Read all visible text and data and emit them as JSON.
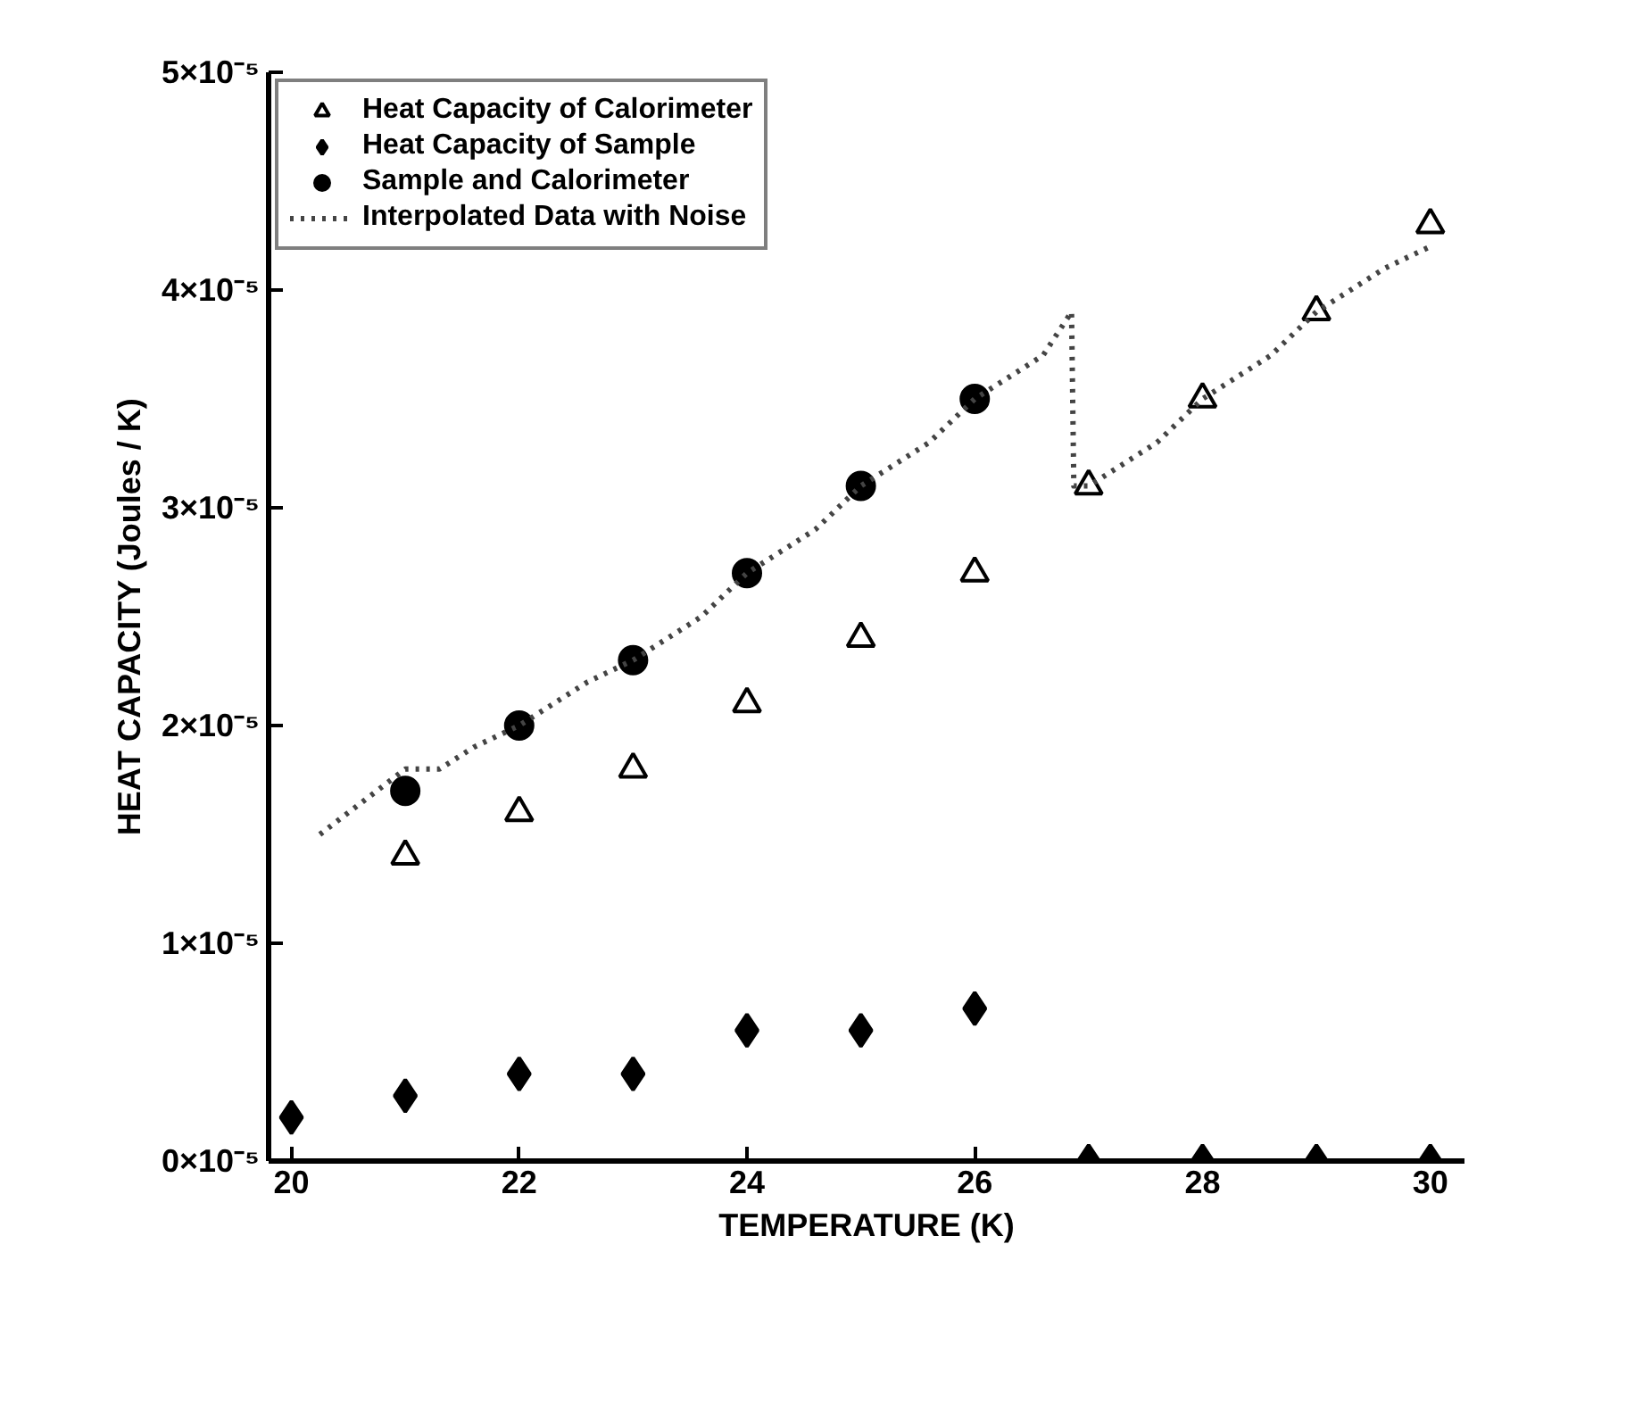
{
  "chart_data": {
    "type": "scatter",
    "xlabel": "TEMPERATURE (K)",
    "ylabel": "HEAT CAPACITY (Joules / K)",
    "xlim": [
      19.8,
      30.3
    ],
    "xticks": [
      20,
      22,
      24,
      26,
      28,
      30
    ],
    "ylim": [
      0,
      5e-05
    ],
    "yticks": [
      {
        "value": 0,
        "label": "0×10⁻⁵"
      },
      {
        "value": 1e-05,
        "label": "1×10⁻⁵"
      },
      {
        "value": 2e-05,
        "label": "2×10⁻⁵"
      },
      {
        "value": 3e-05,
        "label": "3×10⁻⁵"
      },
      {
        "value": 4e-05,
        "label": "4×10⁻⁵"
      },
      {
        "value": 5e-05,
        "label": "5×10⁻⁵"
      }
    ],
    "legend": "top left",
    "series": [
      {
        "name": "Heat Capacity of Calorimeter",
        "marker": "triangle",
        "color": "#000000",
        "x": [
          21,
          22,
          23,
          24,
          25,
          26,
          27,
          28,
          29,
          30
        ],
        "values": [
          1.4e-05,
          1.6e-05,
          1.8e-05,
          2.1e-05,
          2.4e-05,
          2.7e-05,
          3.1e-05,
          3.5e-05,
          3.9e-05,
          4.3e-05
        ]
      },
      {
        "name": "Heat Capacity of Sample",
        "marker": "diamond",
        "color": "#000000",
        "x": [
          20,
          21,
          22,
          23,
          24,
          25,
          26,
          27,
          28,
          29,
          30
        ],
        "values": [
          2e-06,
          3e-06,
          4e-06,
          4e-06,
          6e-06,
          6e-06,
          7e-06,
          0,
          0,
          0,
          0
        ]
      },
      {
        "name": "Sample and Calorimeter",
        "marker": "circle",
        "color": "#000000",
        "x": [
          21,
          22,
          23,
          24,
          25,
          26
        ],
        "values": [
          1.7e-05,
          2e-05,
          2.3e-05,
          2.7e-05,
          3.1e-05,
          3.5e-05
        ]
      },
      {
        "name": "Interpolated Data with Noise",
        "type": "line",
        "line_style": "dotted",
        "color": "#444444",
        "x": [
          20.25,
          20.5,
          20.75,
          21,
          21.3,
          21.6,
          22,
          22.3,
          22.6,
          23,
          23.3,
          23.6,
          24,
          24.3,
          24.6,
          25,
          25.3,
          25.6,
          26,
          26.3,
          26.6,
          26.85,
          26.87,
          27,
          27.3,
          27.6,
          28,
          28.3,
          28.6,
          29,
          29.3,
          29.6,
          30
        ],
        "values": [
          1.5e-05,
          1.6e-05,
          1.7e-05,
          1.8e-05,
          1.8e-05,
          1.9e-05,
          2e-05,
          2.1e-05,
          2.2e-05,
          2.3e-05,
          2.4e-05,
          2.5e-05,
          2.7e-05,
          2.8e-05,
          2.9e-05,
          3.1e-05,
          3.2e-05,
          3.3e-05,
          3.5e-05,
          3.6e-05,
          3.7e-05,
          3.9e-05,
          3.1e-05,
          3.1e-05,
          3.2e-05,
          3.3e-05,
          3.5e-05,
          3.6e-05,
          3.7e-05,
          3.9e-05,
          4e-05,
          4.1e-05,
          4.2e-05
        ]
      }
    ]
  }
}
